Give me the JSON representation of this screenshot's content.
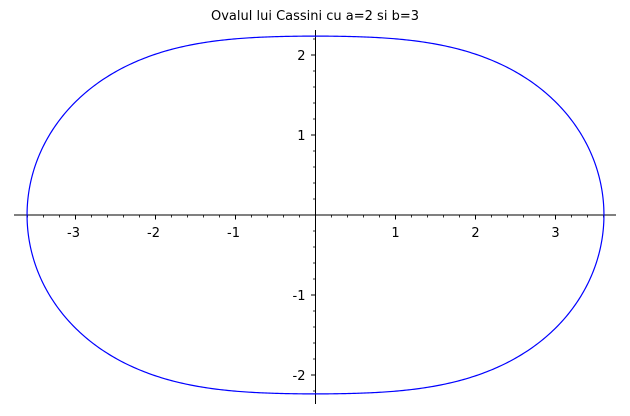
{
  "chart_data": {
    "type": "line",
    "title": "Ovalul lui Cassini cu a=2 si b=3",
    "xlabel": "",
    "ylabel": "",
    "curve": {
      "kind": "cassini-oval",
      "a": 2,
      "b": 3,
      "equation": "((x-a)^2+y^2)((x+a)^2+y^2) = b^4",
      "x_intercepts": [
        -3.606,
        3.606
      ],
      "y_intercepts": [
        -2.236,
        2.236
      ],
      "color": "#0000ff"
    },
    "xlim": [
      -3.7,
      3.7
    ],
    "ylim": [
      -2.35,
      2.3
    ],
    "x_ticks": [
      -3,
      -2,
      -1,
      1,
      2,
      3
    ],
    "x_tick_labels": [
      "-3",
      "-2",
      "-1",
      "1",
      "2",
      "3"
    ],
    "y_ticks": [
      -2,
      -1,
      1,
      2
    ],
    "y_tick_labels": [
      "-2",
      "-1",
      "1",
      "2"
    ],
    "minor_tick_step": 0.2,
    "axes": "centered-through-origin",
    "grid": false,
    "legend": "none"
  }
}
